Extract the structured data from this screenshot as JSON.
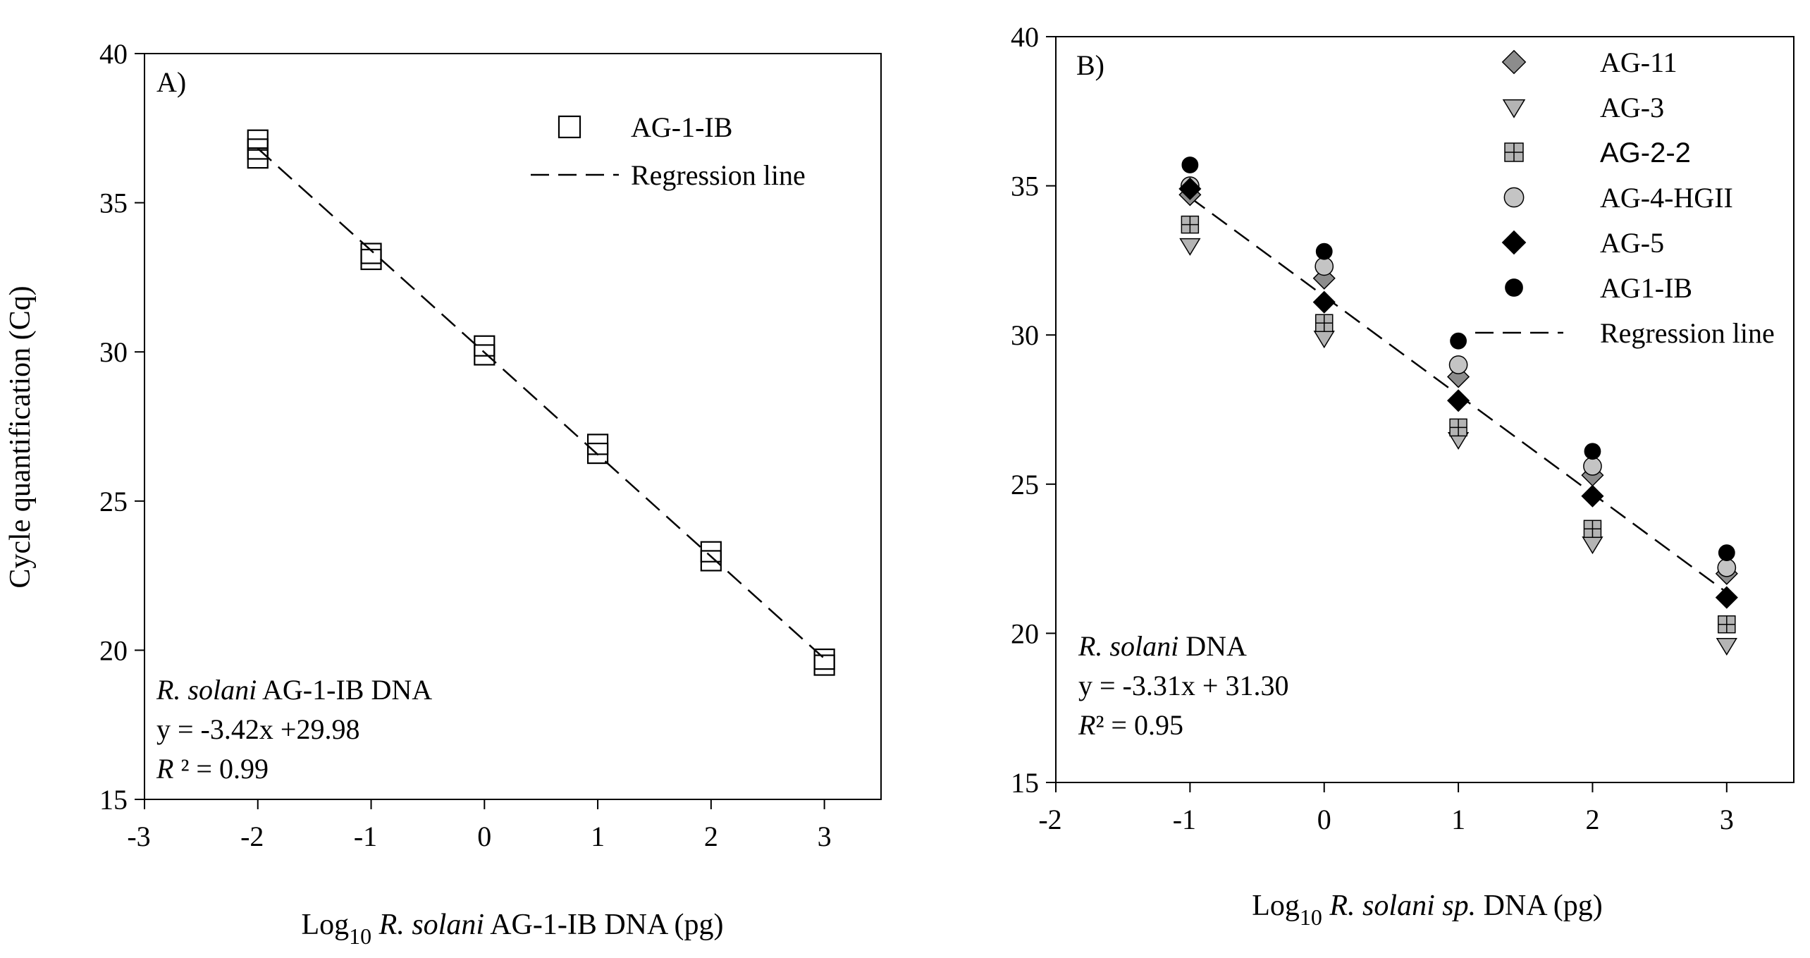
{
  "chart_data": [
    {
      "type": "scatter",
      "panel_label": "A)",
      "xlabel_parts": [
        "Log",
        "10",
        " R. solani",
        " AG-1-IB DNA (pg)"
      ],
      "ylabel": "Cycle quantification (Cq)",
      "xlim": [
        -3,
        3.5
      ],
      "ylim": [
        15,
        40
      ],
      "xticks": [
        "-3",
        "-2",
        "-1",
        "0",
        "1",
        "2",
        "3"
      ],
      "yticks": [
        "15",
        "20",
        "25",
        "30",
        "35",
        "40"
      ],
      "legend_position": "top-right",
      "series": [
        {
          "name": "AG-1-IB",
          "marker": "square-open",
          "points": [
            [
              -2,
              36.5
            ],
            [
              -2,
              36.8
            ],
            [
              -2,
              37.1
            ],
            [
              -1,
              33.1
            ],
            [
              -1,
              33.3
            ],
            [
              0,
              29.9
            ],
            [
              0,
              30.2
            ],
            [
              1,
              26.6
            ],
            [
              1,
              26.9
            ],
            [
              2,
              23.0
            ],
            [
              2,
              23.3
            ],
            [
              3,
              19.5
            ],
            [
              3,
              19.7
            ]
          ]
        }
      ],
      "regression": {
        "name": "Regression line",
        "slope": -3.42,
        "intercept": 29.98,
        "x_range": [
          -2,
          3
        ]
      },
      "annotation": {
        "line1_italic": "R. solani",
        "line1_rest": " AG-1-IB DNA",
        "line2": "y = -3.42x +29.98",
        "line3_italic": "R",
        "line3_rest": " ² = 0.99"
      }
    },
    {
      "type": "scatter",
      "panel_label": "B)",
      "xlabel_parts": [
        "Log",
        "10",
        " R. solani sp.",
        " DNA (pg)"
      ],
      "ylabel": "",
      "xlim": [
        -2,
        3.5
      ],
      "ylim": [
        15,
        40
      ],
      "xticks": [
        "-2",
        "-1",
        "0",
        "1",
        "2",
        "3"
      ],
      "yticks": [
        "15",
        "20",
        "25",
        "30",
        "35",
        "40"
      ],
      "legend_position": "top-right",
      "series": [
        {
          "name": "AG-11",
          "marker": "diamond",
          "color": "#8c8c8c",
          "points": [
            [
              -1,
              34.7
            ],
            [
              0,
              31.9
            ],
            [
              1,
              28.6
            ],
            [
              2,
              25.3
            ],
            [
              3,
              22.0
            ]
          ]
        },
        {
          "name": "AG-3",
          "marker": "triangle-down",
          "color": "#b4b4b4",
          "points": [
            [
              -1,
              33.0
            ],
            [
              0,
              29.9
            ],
            [
              1,
              26.5
            ],
            [
              2,
              23.0
            ],
            [
              3,
              19.6
            ]
          ]
        },
        {
          "name": "AG-2-2",
          "marker": "square-plus",
          "color": "#b4b4b4",
          "points": [
            [
              -1,
              33.7
            ],
            [
              0,
              30.4
            ],
            [
              1,
              26.9
            ],
            [
              2,
              23.5
            ],
            [
              3,
              20.3
            ]
          ]
        },
        {
          "name": "AG-4-HGII",
          "marker": "circle",
          "color": "#c4c4c4",
          "points": [
            [
              -1,
              35.0
            ],
            [
              0,
              32.3
            ],
            [
              1,
              29.0
            ],
            [
              2,
              25.6
            ],
            [
              3,
              22.2
            ]
          ]
        },
        {
          "name": "AG-5",
          "marker": "diamond",
          "color": "#000000",
          "points": [
            [
              -1,
              34.9
            ],
            [
              0,
              31.1
            ],
            [
              1,
              27.8
            ],
            [
              2,
              24.6
            ],
            [
              3,
              21.2
            ]
          ]
        },
        {
          "name": "AG1-IB",
          "marker": "dot",
          "color": "#000000",
          "points": [
            [
              -1,
              35.7
            ],
            [
              0,
              32.8
            ],
            [
              1,
              29.8
            ],
            [
              2,
              26.1
            ],
            [
              3,
              22.7
            ]
          ]
        }
      ],
      "regression": {
        "name": "Regression line",
        "slope": -3.31,
        "intercept": 31.3,
        "x_range": [
          -1,
          3
        ]
      },
      "annotation": {
        "line1_italic": "R. solani",
        "line1_rest": " DNA",
        "line2": "y = -3.31x + 31.30",
        "line3_italic": "R",
        "line3_rest": "² =   0.95"
      }
    }
  ]
}
